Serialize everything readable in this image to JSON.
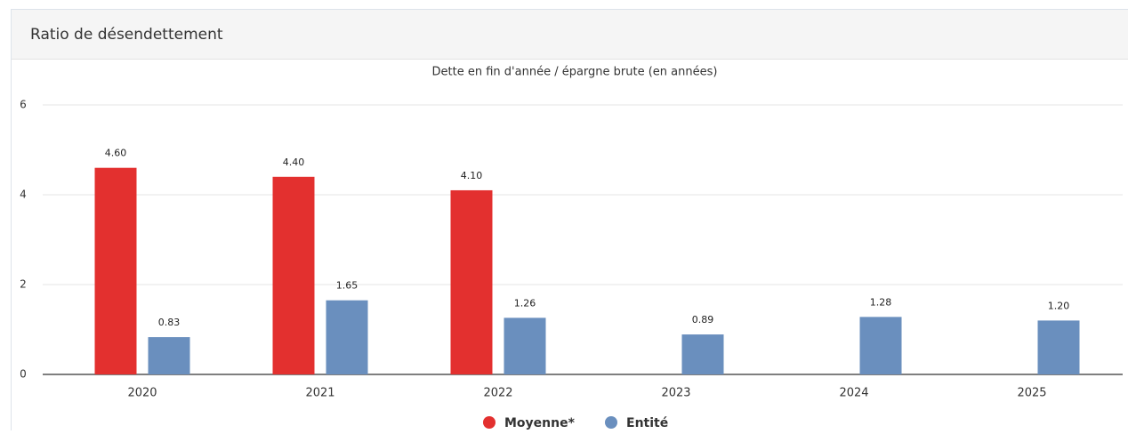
{
  "panel": {
    "title": "Ratio de désendettement"
  },
  "chart_data": {
    "type": "bar",
    "title": "Dette en fin d'année / épargne brute (en années)",
    "categories": [
      "2020",
      "2021",
      "2022",
      "2023",
      "2024",
      "2025"
    ],
    "series": [
      {
        "name": "Moyenne*",
        "color": "#e3302f",
        "values": [
          4.6,
          4.4,
          4.1,
          null,
          null,
          null
        ],
        "value_labels": [
          "4.60",
          "4.40",
          "4.10",
          null,
          null,
          null
        ]
      },
      {
        "name": "Entité",
        "color": "#6a8fbe",
        "values": [
          0.83,
          1.65,
          1.26,
          0.89,
          1.28,
          1.2
        ],
        "value_labels": [
          "0.83",
          "1.65",
          "1.26",
          "0.89",
          "1.28",
          "1.20"
        ]
      }
    ],
    "ylim": [
      0,
      6
    ],
    "yticks": [
      0,
      2,
      4,
      6
    ],
    "grid": true,
    "legend": "bottom"
  }
}
